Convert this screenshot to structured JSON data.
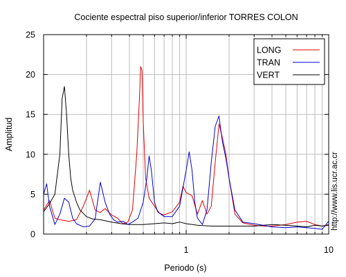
{
  "chart_data": {
    "type": "line",
    "title": "Cociente espectral piso superior/inferior  TORRES COLON",
    "xlabel": "Periodo (s)",
    "ylabel": "Amplitud",
    "x_scale": "log",
    "xlim": [
      0.1,
      10
    ],
    "ylim": [
      0,
      25
    ],
    "x_ticks": [
      1,
      10
    ],
    "x_tick_labels": [
      "1",
      "10"
    ],
    "y_ticks": [
      0,
      5,
      10,
      15,
      20,
      25
    ],
    "y_tick_labels": [
      "0",
      "5",
      "10",
      "15",
      "20",
      "25"
    ],
    "grid": true,
    "legend_position": "top-right",
    "series": [
      {
        "name": "LONG",
        "color": "#e00000",
        "x": [
          0.1,
          0.11,
          0.12,
          0.13,
          0.14,
          0.15,
          0.17,
          0.19,
          0.21,
          0.23,
          0.25,
          0.27,
          0.3,
          0.33,
          0.36,
          0.39,
          0.42,
          0.45,
          0.47,
          0.48,
          0.49,
          0.5,
          0.52,
          0.55,
          0.6,
          0.65,
          0.7,
          0.8,
          0.9,
          0.95,
          1.0,
          1.1,
          1.2,
          1.3,
          1.4,
          1.5,
          1.6,
          1.7,
          1.8,
          1.9,
          2.0,
          2.2,
          2.5,
          3.0,
          3.5,
          4.0,
          5.0,
          6.0,
          7.0,
          8.0,
          9.0,
          10.0
        ],
        "y": [
          3.0,
          4.2,
          2.0,
          1.8,
          1.7,
          1.6,
          1.8,
          3.5,
          5.5,
          3.0,
          2.7,
          3.2,
          2.4,
          2.0,
          1.3,
          1.5,
          3.0,
          10.0,
          17.0,
          21.0,
          20.5,
          14.0,
          7.0,
          4.5,
          3.5,
          2.6,
          2.4,
          2.8,
          4.0,
          6.0,
          5.2,
          4.8,
          2.5,
          4.2,
          2.5,
          3.5,
          9.0,
          13.8,
          12.0,
          10.0,
          7.0,
          2.5,
          1.4,
          1.1,
          1.0,
          1.0,
          1.2,
          1.5,
          1.6,
          1.2,
          1.0,
          1.2
        ]
      },
      {
        "name": "TRAN",
        "color": "#0000d0",
        "x": [
          0.1,
          0.105,
          0.11,
          0.12,
          0.13,
          0.14,
          0.15,
          0.16,
          0.17,
          0.19,
          0.21,
          0.23,
          0.25,
          0.27,
          0.29,
          0.31,
          0.33,
          0.36,
          0.39,
          0.42,
          0.46,
          0.5,
          0.53,
          0.55,
          0.57,
          0.6,
          0.63,
          0.7,
          0.8,
          0.9,
          1.0,
          1.05,
          1.1,
          1.15,
          1.2,
          1.3,
          1.4,
          1.5,
          1.6,
          1.7,
          1.75,
          1.8,
          1.9,
          2.0,
          2.2,
          2.5,
          3.0,
          4.0,
          5.0,
          6.0,
          7.0,
          8.0,
          9.0,
          10.0
        ],
        "y": [
          5.0,
          6.3,
          3.5,
          1.2,
          2.5,
          4.5,
          4.0,
          2.0,
          1.3,
          0.9,
          1.0,
          1.9,
          6.5,
          4.0,
          2.5,
          1.8,
          1.5,
          1.6,
          1.2,
          1.5,
          2.0,
          4.0,
          7.0,
          9.8,
          8.0,
          4.0,
          2.8,
          2.2,
          2.2,
          3.5,
          8.0,
          10.3,
          8.0,
          4.0,
          2.0,
          1.2,
          3.0,
          9.0,
          13.5,
          14.8,
          13.0,
          11.5,
          9.5,
          7.0,
          3.0,
          1.5,
          1.3,
          0.9,
          0.8,
          0.9,
          0.8,
          0.7,
          0.6,
          1.6
        ]
      },
      {
        "name": "VERT",
        "color": "#000000",
        "x": [
          0.1,
          0.11,
          0.12,
          0.13,
          0.135,
          0.14,
          0.145,
          0.15,
          0.155,
          0.16,
          0.17,
          0.18,
          0.2,
          0.22,
          0.25,
          0.3,
          0.35,
          0.4,
          0.5,
          0.6,
          0.7,
          0.8,
          0.9,
          1.0,
          1.2,
          1.5,
          2.0,
          3.0,
          4.0,
          5.0,
          6.0,
          7.0,
          8.0,
          9.0,
          10.0
        ],
        "y": [
          2.8,
          3.8,
          5.0,
          10.0,
          17.0,
          18.5,
          15.0,
          10.0,
          7.0,
          5.5,
          4.0,
          3.0,
          2.2,
          1.9,
          1.8,
          1.5,
          1.3,
          1.2,
          1.2,
          1.3,
          1.4,
          1.3,
          1.5,
          1.3,
          1.1,
          1.0,
          1.0,
          1.0,
          1.2,
          1.1,
          1.0,
          0.9,
          1.1,
          1.0,
          1.1
        ]
      }
    ],
    "annotations": [
      "http://www.lis.ucr.ac.cr"
    ]
  }
}
